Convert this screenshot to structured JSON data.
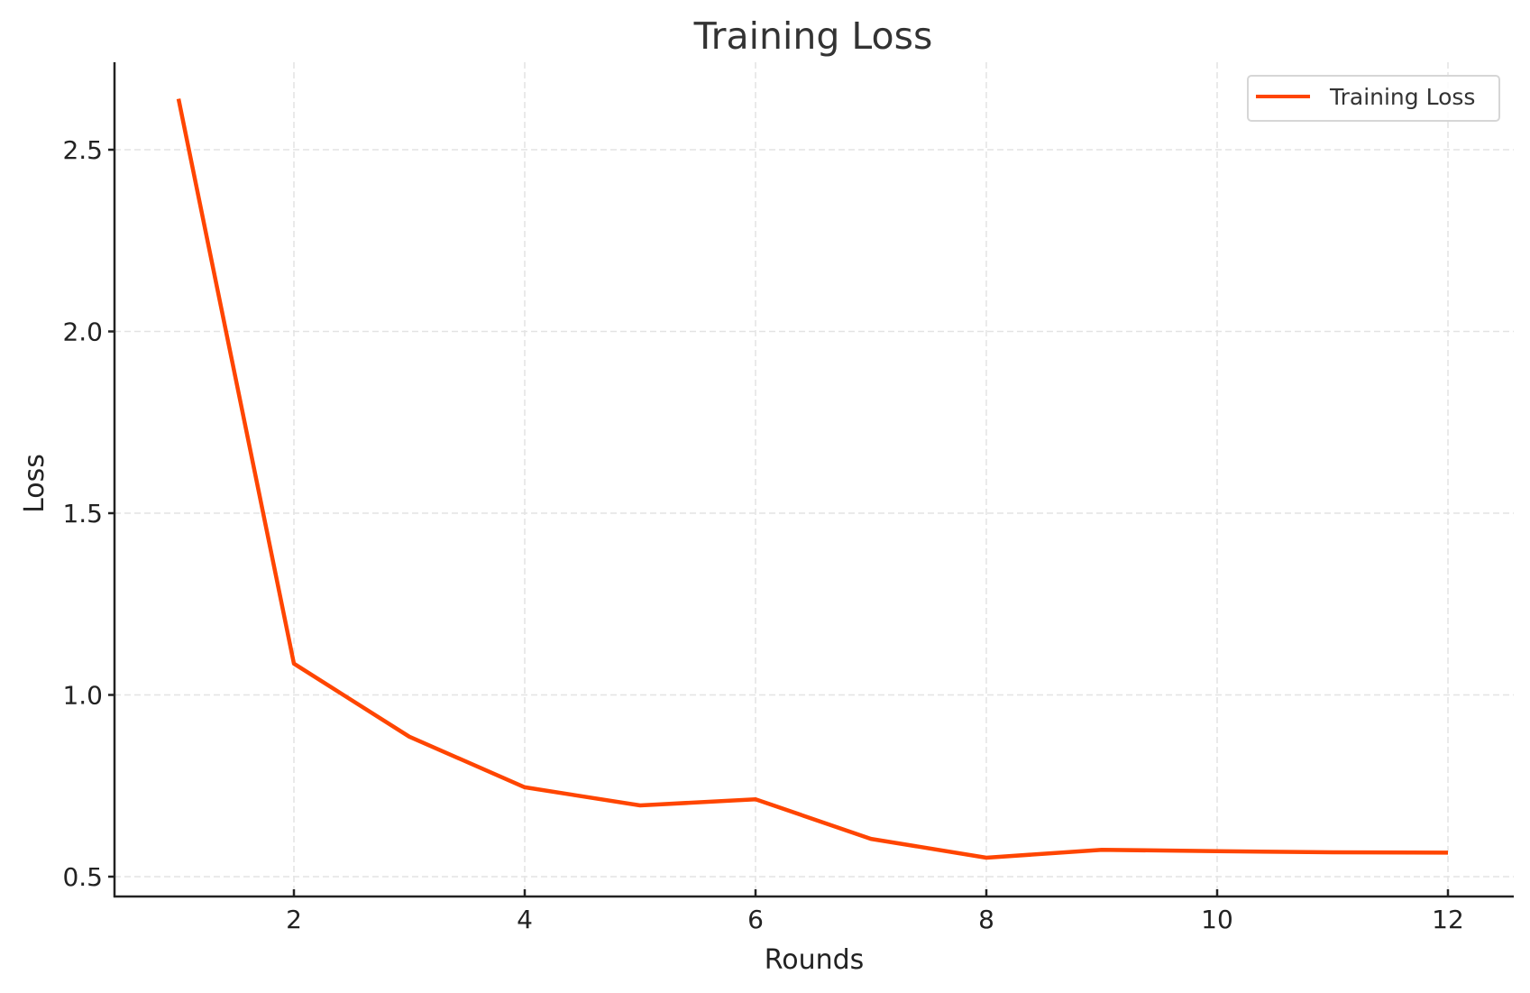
{
  "chart_data": {
    "type": "line",
    "title": "Training Loss",
    "xlabel": "Rounds",
    "ylabel": "Loss",
    "x": [
      1,
      2,
      3,
      4,
      5,
      6,
      7,
      8,
      9,
      10,
      11,
      12
    ],
    "series": [
      {
        "name": "Training Loss",
        "color": "#FF4500",
        "values": [
          2.64,
          1.086,
          0.885,
          0.746,
          0.696,
          0.713,
          0.604,
          0.552,
          0.574,
          0.57,
          0.567,
          0.566
        ]
      }
    ],
    "xticks": [
      2,
      4,
      6,
      8,
      10,
      12
    ],
    "xtick_labels": [
      "2",
      "4",
      "6",
      "8",
      "10",
      "12"
    ],
    "yticks": [
      0.5,
      1.0,
      1.5,
      2.0,
      2.5
    ],
    "ytick_labels": [
      "0.5",
      "1.0",
      "1.5",
      "2.0",
      "2.5"
    ],
    "xlim": [
      0.445,
      12.55
    ],
    "ylim": [
      0.445,
      2.74
    ],
    "grid": true,
    "legend_position": "upper right"
  }
}
